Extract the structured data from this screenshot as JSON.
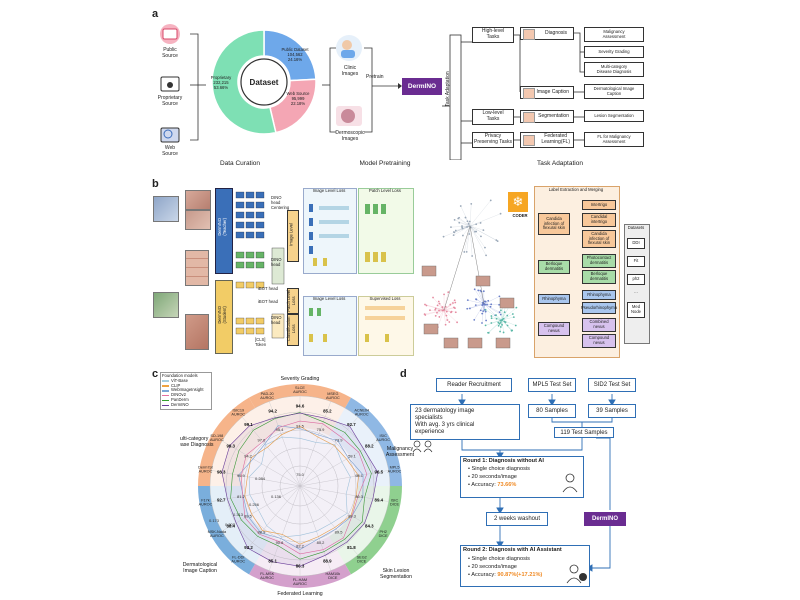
{
  "panel_a": {
    "label": "a",
    "sources": [
      {
        "name": "Public\nSource",
        "icon": "public-source-icon"
      },
      {
        "name": "Proprietary\nSource",
        "icon": "proprietary-source-icon"
      },
      {
        "name": "Web\nSource",
        "icon": "web-source-icon"
      }
    ],
    "donut": {
      "center": "Dataset",
      "slices": [
        {
          "label": "Public Dataset",
          "count": "104,562",
          "pct": "24.16%",
          "value": 24.16,
          "color": "#6ea8ea"
        },
        {
          "label": "Web Source",
          "count": "95,999",
          "pct": "22.18%",
          "value": 22.18,
          "color": "#f4a6b4"
        },
        {
          "label": "Proprietary",
          "count": "232,215",
          "pct": "53.66%",
          "value": 53.66,
          "color": "#7ee0b4"
        }
      ]
    },
    "clinic_images": "Clinic\nImages",
    "dermoscopic_images": "Dermoscopic\nImages",
    "pretrain": "Pretrain",
    "model": "DermINO",
    "task_adaptation_vertical": "Task Adaptation",
    "high_level": "High-level\nTasks",
    "low_level": "Low-level\nTasks",
    "privacy": "Privacy\nPreserving Tasks",
    "diagnosis": "Diagnosis",
    "image_caption": "Image Caption",
    "segmentation": "Segmentation",
    "federated": "Federated\nLearning(FL)",
    "outputs": {
      "malignancy": "Malignancy\nAssessment",
      "severity": "Severity Grading",
      "multicat": "Multi-category\nDisease Diagnosis",
      "derm_caption": "Dermatological Image\nCaption",
      "lesion_seg": "Lesion Segmentation",
      "fl_malig": "FL for Malignancy\nAssessment"
    },
    "captions": {
      "curation": "Data Curation",
      "pretraining": "Model Pretraining",
      "adaptation": "Task Adaptation"
    }
  },
  "panel_b": {
    "label": "b",
    "dermino_teacher": "DermINO\n(Teacher)",
    "dermino_student": "DermINO\n(Student)",
    "dino_head_centering": "DINO\nhead\nCentering",
    "dino_head": "DINO\nhead",
    "ibot_head": "iBOT head",
    "ibot_head2": "iBOT head",
    "dino_head2": "DINO\nhead",
    "cls_token": "[CLS]\nToken",
    "image_level_loss_vert": "Image Level",
    "image_level_loss": "Image Level Loss",
    "patch_level_loss": "Patch Level Loss",
    "patch_level_loss_vert": "Patch Level\nLoss",
    "supervised_loss": "Supervised Loss",
    "image_level_loss2": "Image Level Loss",
    "classification_loss": "Classification\nLoss",
    "coder": "CODER",
    "label_extraction": "Label Extraction and Merging",
    "datasets_title": "Datasets",
    "datasets": [
      "DDI",
      "Fit",
      "ph2",
      "...",
      "Med\nNode"
    ],
    "groups": [
      {
        "parent": "Candida\ninfection of\nflexural skin",
        "children": [
          "Intertrigo",
          "Candidal\nintertrigo",
          "Candida\ninfection of\nflexural skin"
        ],
        "color": "#f8c89a"
      },
      {
        "parent": "Berloque\ndermatitis",
        "children": [
          "Photocontact\ndermatitis",
          "Berloque\ndermatitis"
        ],
        "color": "#a8dca8"
      },
      {
        "parent": "Rhinophyma",
        "children": [
          "Rhinophyma",
          "Pseudorhinophyma"
        ],
        "color": "#a9c6ee"
      },
      {
        "parent": "Compound\nnevus",
        "children": [
          "Combined\nnevus",
          "Compound\nnevus"
        ],
        "color": "#d7c2ee"
      }
    ]
  },
  "panel_c": {
    "label": "c",
    "legend_title": "Foundation models",
    "legend": [
      {
        "name": "ViT-Base",
        "color": "#a6cde0"
      },
      {
        "name": "CLIP",
        "color": "#f1a340"
      },
      {
        "name": "WebImageInsight",
        "color": "#7aa6d6"
      },
      {
        "name": "DINOv2",
        "color": "#e66fa0"
      },
      {
        "name": "PanDerm",
        "color": "#33a02c"
      },
      {
        "name": "DermINO",
        "color": "#6a3d9a"
      }
    ],
    "sections": [
      {
        "name": "Severity Grading",
        "color": "#f6b48a"
      },
      {
        "name": "Malignancy\nAssessment",
        "color": "#8fb8e4"
      },
      {
        "name": "Skin Lesion\nSegmentation",
        "color": "#8fd08f"
      },
      {
        "name": "Federated Learning",
        "color": "#d4a0cc"
      },
      {
        "name": "Dermatological\nImage Caption",
        "color": "#7aaedc"
      },
      {
        "name": "Multi-category\nDisease Diagnosis",
        "color": "#f6b48a"
      }
    ],
    "axes": [
      "SLCE\nAUROC",
      "MSEG\nAUROC",
      "ACNE04\nAUROC",
      "ISIC\nAUROC",
      "MPL5\nAUROC",
      "ISIC\nDICE",
      "PH2\nDICE",
      "SEG2\nDICE",
      "HAM10k\nDICE",
      "FL-HAM\nAUROC",
      "FL-MSK\nAUROC",
      "FL-DDI\nAUROC",
      "MSK-Nada\nAUROC",
      "F17k\nAUROC",
      "Derm7pt\nAUROC",
      "SD-198\nAUROC",
      "ISIC19\nAUROC",
      "PAD-20\nAUROC"
    ],
    "top_values": [
      "94.6",
      "85.2",
      "92.7",
      "88.2",
      "96.5",
      "89.4",
      "84.3",
      "81.8",
      "88.9",
      "86.3",
      "85.1",
      "93.2",
      "88.4",
      "92.7",
      "98.3",
      "99.3",
      "99.1",
      "94.2"
    ],
    "inner_values": [
      "91.5",
      "75.9",
      "73.9",
      "59.1",
      "98.1",
      "86.3",
      "89.3",
      "89.5",
      "80.2",
      "82.2",
      "90.8",
      "88.9",
      "89.5",
      "81.2",
      "96.9",
      "94.2",
      "97.6",
      "95.4"
    ],
    "misc_values": [
      "0.173",
      "0.303",
      "0.313",
      "0.136",
      "0.284",
      "0.256",
      "75.0"
    ]
  },
  "panel_d": {
    "label": "d",
    "reader_recruitment": "Reader Recruitment",
    "mpl5": "MPL5 Test Set",
    "sid2": "SID2 Test Set",
    "specialists": "23 dermatology image\nspecialists\nWith avg. 3 yrs clinical\nexperience",
    "mpl5_samples": "80 Samples",
    "sid2_samples": "39 Samples",
    "total_samples": "119 Test Samples",
    "round1_title": "Round 1: Diagnosis without AI",
    "round1_items": [
      "Single choice diagnosis",
      "20 seconds/image"
    ],
    "round1_acc_label": "Accuracy: ",
    "round1_acc": "73.66%",
    "washout": "2 weeks washout",
    "dermino": "DermINO",
    "round2_title": "Round 2: Diagnosis with AI Assistant",
    "round2_items": [
      "Single choice diagnosis",
      "20 seconds/image"
    ],
    "round2_acc_label": "Accuracy: ",
    "round2_acc": "90.87%(+17.21%)",
    "accent": "#f08a24"
  }
}
